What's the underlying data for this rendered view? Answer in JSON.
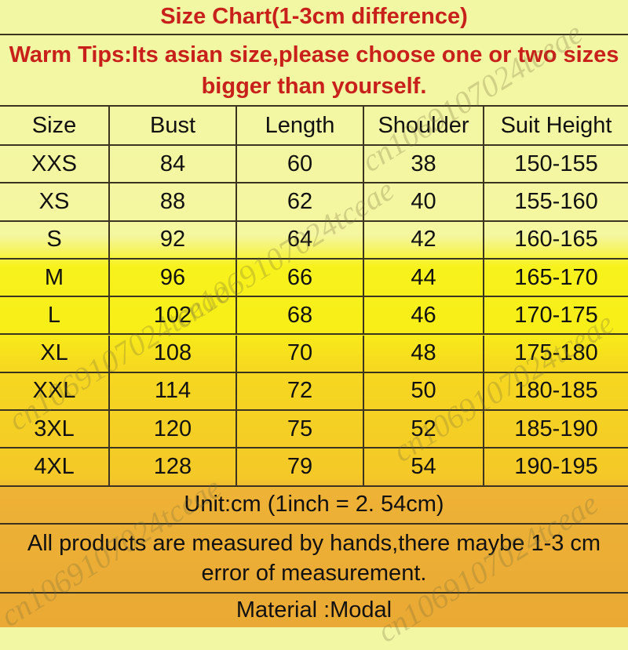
{
  "title": "Size Chart(1-3cm difference)",
  "tips": "Warm Tips:Its asian size,please choose one or two sizes bigger than yourself.",
  "headers": [
    "Size",
    "Bust",
    "Length",
    "Shoulder",
    "Suit Height"
  ],
  "rows": [
    [
      "XXS",
      "84",
      "60",
      "38",
      "150-155"
    ],
    [
      "XS",
      "88",
      "62",
      "40",
      "155-160"
    ],
    [
      "S",
      "92",
      "64",
      "42",
      "160-165"
    ],
    [
      "M",
      "96",
      "66",
      "44",
      "165-170"
    ],
    [
      "L",
      "102",
      "68",
      "46",
      "170-175"
    ],
    [
      "XL",
      "108",
      "70",
      "48",
      "175-180"
    ],
    [
      "XXL",
      "114",
      "72",
      "50",
      "180-185"
    ],
    [
      "3XL",
      "120",
      "75",
      "52",
      "185-190"
    ],
    [
      "4XL",
      "128",
      "79",
      "54",
      "190-195"
    ]
  ],
  "unit": "Unit:cm (1inch = 2. 54cm)",
  "note": "All products are measured by hands,there maybe 1-3 cm error of measurement.",
  "material": "Material :Modal",
  "watermark": "cn1069107024tceae",
  "colors": {
    "title_text": "#c8201a",
    "body_text": "#111111"
  }
}
